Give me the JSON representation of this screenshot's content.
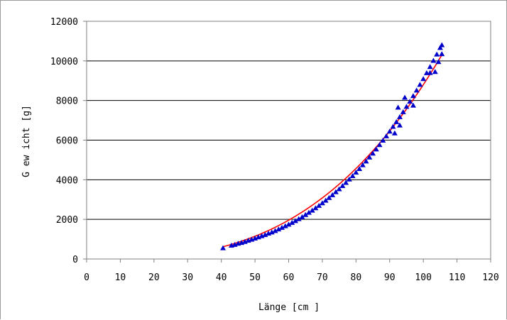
{
  "chart_data": {
    "type": "scatter",
    "title": "",
    "xlabel": "Länge [cm ]",
    "ylabel": "G ew icht [g]",
    "xlim": [
      0,
      120
    ],
    "ylim": [
      0,
      12000
    ],
    "x_ticks": [
      0,
      10,
      20,
      30,
      40,
      50,
      60,
      70,
      80,
      90,
      100,
      110,
      120
    ],
    "y_ticks": [
      0,
      2000,
      4000,
      6000,
      8000,
      10000,
      12000
    ],
    "grid": "horizontal",
    "legend": "none",
    "colors": {
      "marker": "#0000cc",
      "trendline": "#ff0000",
      "grid": "#000000",
      "axis": "#808080"
    },
    "series": [
      {
        "marker": "triangle",
        "points": [
          [
            40.5,
            550
          ],
          [
            43,
            680
          ],
          [
            44,
            720
          ],
          [
            45,
            780
          ],
          [
            46,
            820
          ],
          [
            47,
            870
          ],
          [
            48,
            930
          ],
          [
            49,
            980
          ],
          [
            50,
            1040
          ],
          [
            51,
            1100
          ],
          [
            52,
            1160
          ],
          [
            53,
            1220
          ],
          [
            54,
            1290
          ],
          [
            55,
            1350
          ],
          [
            56,
            1420
          ],
          [
            57,
            1500
          ],
          [
            58,
            1580
          ],
          [
            59,
            1660
          ],
          [
            60,
            1740
          ],
          [
            61,
            1830
          ],
          [
            62,
            1920
          ],
          [
            63,
            2020
          ],
          [
            64,
            2120
          ],
          [
            65,
            2230
          ],
          [
            66,
            2340
          ],
          [
            67,
            2450
          ],
          [
            68,
            2570
          ],
          [
            69,
            2690
          ],
          [
            70,
            2820
          ],
          [
            71,
            2950
          ],
          [
            72,
            3090
          ],
          [
            73,
            3230
          ],
          [
            74,
            3380
          ],
          [
            75,
            3530
          ],
          [
            76,
            3690
          ],
          [
            77,
            3850
          ],
          [
            78,
            4020
          ],
          [
            79,
            4190
          ],
          [
            80,
            4370
          ],
          [
            81,
            4550
          ],
          [
            82,
            4740
          ],
          [
            83,
            4930
          ],
          [
            84,
            5130
          ],
          [
            85,
            5330
          ],
          [
            86,
            5540
          ],
          [
            87,
            5760
          ],
          [
            88,
            5980
          ],
          [
            89,
            6200
          ],
          [
            90,
            6440
          ],
          [
            91,
            6680
          ],
          [
            92,
            6920
          ],
          [
            93,
            7170
          ],
          [
            94,
            7420
          ],
          [
            95,
            7690
          ],
          [
            96,
            7950
          ],
          [
            97,
            8230
          ],
          [
            98,
            8510
          ],
          [
            99,
            8800
          ],
          [
            100,
            9090
          ],
          [
            101,
            9390
          ],
          [
            102,
            9700
          ],
          [
            103,
            10010
          ],
          [
            104,
            10330
          ],
          [
            105,
            10660
          ],
          [
            91.5,
            6350
          ],
          [
            92.5,
            7650
          ],
          [
            93,
            6750
          ],
          [
            94.5,
            8150
          ],
          [
            97,
            7750
          ],
          [
            102,
            9400
          ],
          [
            103.5,
            9450
          ],
          [
            105.5,
            10350
          ],
          [
            105.5,
            10800
          ],
          [
            104.5,
            9950
          ]
        ]
      }
    ],
    "trendline": {
      "type": "power",
      "a": 0.0116,
      "b": 2.94,
      "x_range": [
        40.5,
        105.5
      ]
    }
  }
}
